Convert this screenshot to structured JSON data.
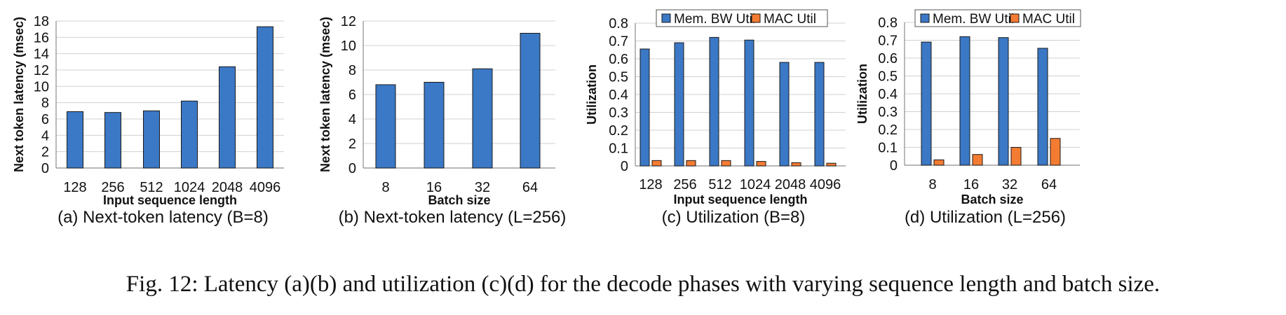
{
  "figure_caption": "Fig. 12: Latency (a)(b) and utilization (c)(d) for the decode phases with varying sequence length and batch size.",
  "colors": {
    "mem_bw": "#3b78c5",
    "mac": "#f47b32",
    "grid": "#d0d0d0",
    "axis": "#8c8c8c"
  },
  "chart_data": [
    {
      "type": "bar",
      "subcaption": "(a) Next-token latency (B=8)",
      "xlabel": "Input sequence length",
      "ylabel": "Next token latency (msec)",
      "categories": [
        "128",
        "256",
        "512",
        "1024",
        "2048",
        "4096"
      ],
      "ylim": [
        0,
        18
      ],
      "yticks": [
        "0",
        "2",
        "4",
        "6",
        "8",
        "10",
        "12",
        "14",
        "16",
        "18"
      ],
      "grid": true,
      "legend": "none",
      "series": [
        {
          "values": [
            6.9,
            6.8,
            7.0,
            8.2,
            12.4,
            17.3
          ]
        }
      ]
    },
    {
      "type": "bar",
      "subcaption": "(b) Next-token latency (L=256)",
      "xlabel": "Batch size",
      "ylabel": "Next token latency (msec)",
      "categories": [
        "8",
        "16",
        "32",
        "64"
      ],
      "ylim": [
        0,
        12
      ],
      "yticks": [
        "0",
        "2",
        "4",
        "6",
        "8",
        "10",
        "12"
      ],
      "grid": true,
      "legend": "none",
      "series": [
        {
          "values": [
            6.8,
            7.0,
            8.1,
            11.0
          ]
        }
      ]
    },
    {
      "type": "bar",
      "subcaption": "(c) Utilization (B=8)",
      "xlabel": "Input sequence length",
      "ylabel": "Utilization",
      "categories": [
        "128",
        "256",
        "512",
        "1024",
        "2048",
        "4096"
      ],
      "ylim": [
        0,
        0.8
      ],
      "yticks": [
        "0",
        "0.1",
        "0.2",
        "0.3",
        "0.4",
        "0.5",
        "0.6",
        "0.7",
        "0.8"
      ],
      "grid": true,
      "legend": "top",
      "series": [
        {
          "name": "Mem. BW Util",
          "values": [
            0.655,
            0.69,
            0.72,
            0.705,
            0.58,
            0.58
          ]
        },
        {
          "name": "MAC Util",
          "values": [
            0.03,
            0.03,
            0.03,
            0.025,
            0.018,
            0.015
          ]
        }
      ]
    },
    {
      "type": "bar",
      "subcaption": "(d) Utilization (L=256)",
      "xlabel": "Batch size",
      "ylabel": "Utilization",
      "categories": [
        "8",
        "16",
        "32",
        "64"
      ],
      "ylim": [
        0,
        0.8
      ],
      "yticks": [
        "0",
        "0.1",
        "0.2",
        "0.3",
        "0.4",
        "0.5",
        "0.6",
        "0.7",
        "0.8"
      ],
      "grid": true,
      "legend": "top",
      "series": [
        {
          "name": "Mem. BW Util",
          "values": [
            0.69,
            0.72,
            0.715,
            0.655
          ]
        },
        {
          "name": "MAC Util",
          "values": [
            0.03,
            0.06,
            0.1,
            0.15
          ]
        }
      ]
    }
  ]
}
